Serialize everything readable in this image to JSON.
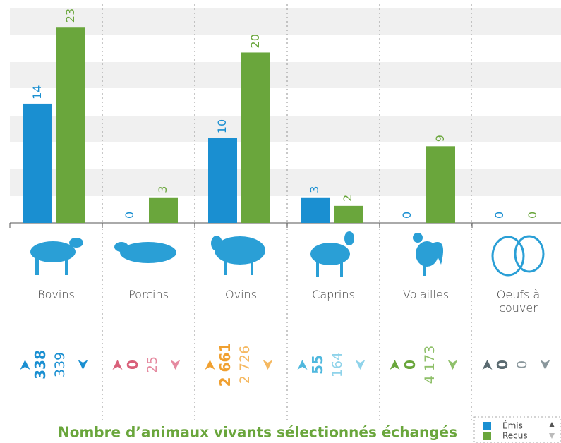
{
  "chart_data": {
    "type": "bar",
    "title": "Nombre d’animaux vivants sélectionnés échangés",
    "categories": [
      "Bovins",
      "Porcins",
      "Ovins",
      "Caprins",
      "Volailles",
      "Oeufs à couver"
    ],
    "series": [
      {
        "name": "Émis",
        "color": "#1a8fd1",
        "values": [
          14,
          0,
          10,
          3,
          0,
          0
        ]
      },
      {
        "name": "Recus",
        "color": "#6aa63c",
        "values": [
          23,
          3,
          20,
          2,
          9,
          0
        ]
      }
    ],
    "ylim": [
      0,
      26
    ]
  },
  "animal_counts": {
    "emis": {
      "values": [
        338,
        0,
        2661,
        55,
        0,
        0
      ],
      "value_labels": [
        "338",
        "0",
        "2 661",
        "55",
        "0",
        "0"
      ],
      "colors": [
        "#1a8fd1",
        "#d9607a",
        "#f0a030",
        "#4fb8de",
        "#6aa63c",
        "#5a6a70"
      ]
    },
    "recus": {
      "values": [
        339,
        25,
        2726,
        164,
        4173,
        0
      ],
      "value_labels": [
        "339",
        "25",
        "2 726",
        "164",
        "4 173",
        "0"
      ],
      "colors": [
        "#1a8fd1",
        "#e58aa0",
        "#f5b860",
        "#8fd3ea",
        "#8fc06a",
        "#8a979c"
      ]
    }
  }
}
